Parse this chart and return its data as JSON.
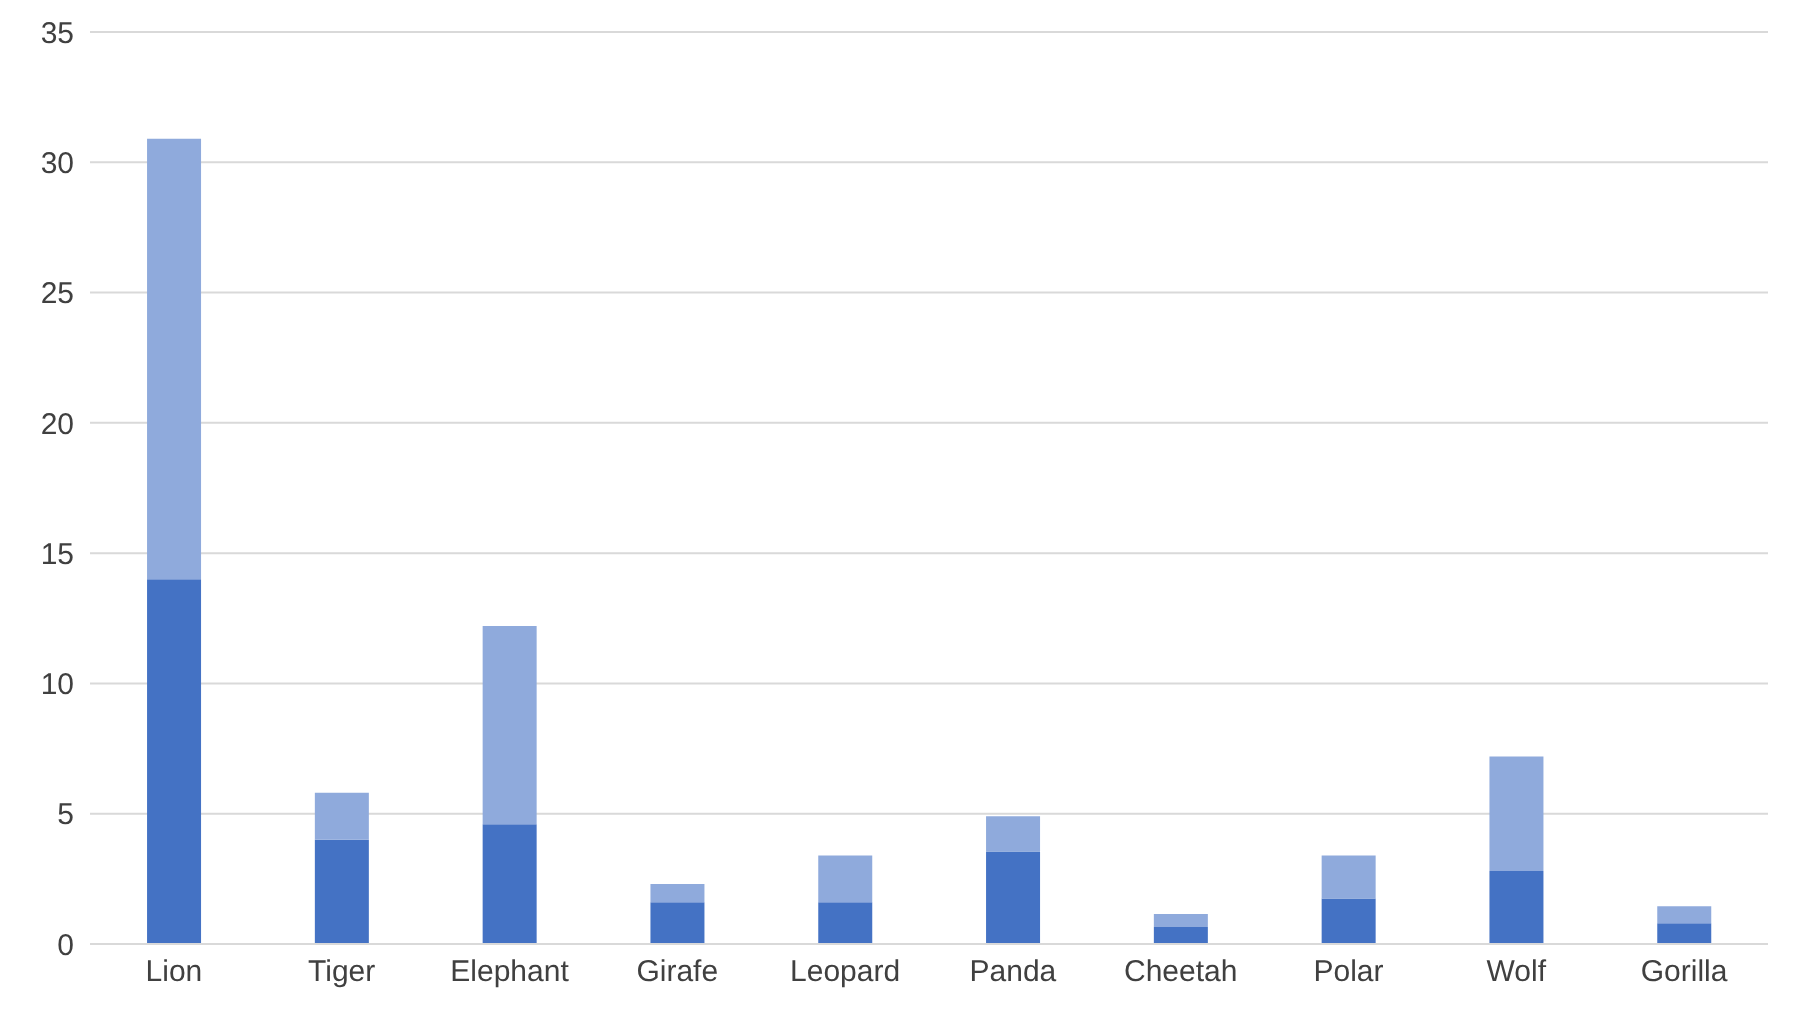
{
  "chart_data": {
    "type": "bar",
    "stacked": true,
    "categories": [
      "Lion",
      "Tiger",
      "Elephant",
      "Girafe",
      "Leopard",
      "Panda",
      "Cheetah",
      "Polar",
      "Wolf",
      "Gorilla"
    ],
    "series": [
      {
        "color": "#4472c4",
        "values": [
          14,
          4,
          4.6,
          1.6,
          1.6,
          3.55,
          0.65,
          1.75,
          2.8,
          0.8
        ]
      },
      {
        "color": "#8faadc",
        "values": [
          16.9,
          1.8,
          7.6,
          0.7,
          1.8,
          1.35,
          0.5,
          1.65,
          4.4,
          0.65
        ]
      }
    ],
    "ylim": [
      0,
      35
    ],
    "yticks": [
      0,
      5,
      10,
      15,
      20,
      25,
      30,
      35
    ],
    "grid": "y",
    "legend": false
  }
}
